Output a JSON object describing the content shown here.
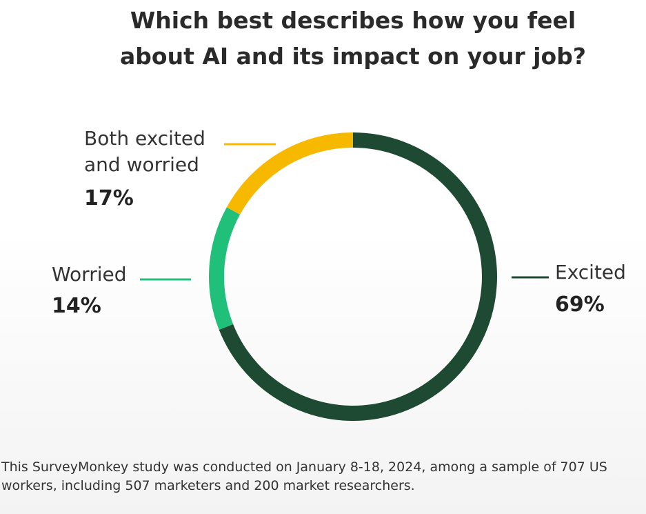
{
  "chart_data": {
    "type": "pie",
    "donut": true,
    "title": "Which best describes how you feel about AI and its impact on your job?",
    "categories": [
      "Excited",
      "Worried",
      "Both excited and worried"
    ],
    "values": [
      69,
      14,
      17
    ],
    "value_labels": [
      "69%",
      "14%",
      "17%"
    ],
    "colors": [
      "#1e4a33",
      "#21c07a",
      "#f6b900"
    ],
    "footnote": "This SurveyMonkey study was conducted on January 8-18, 2024, among a sample of 707 US workers, including 507 marketers and 200 market researchers."
  }
}
